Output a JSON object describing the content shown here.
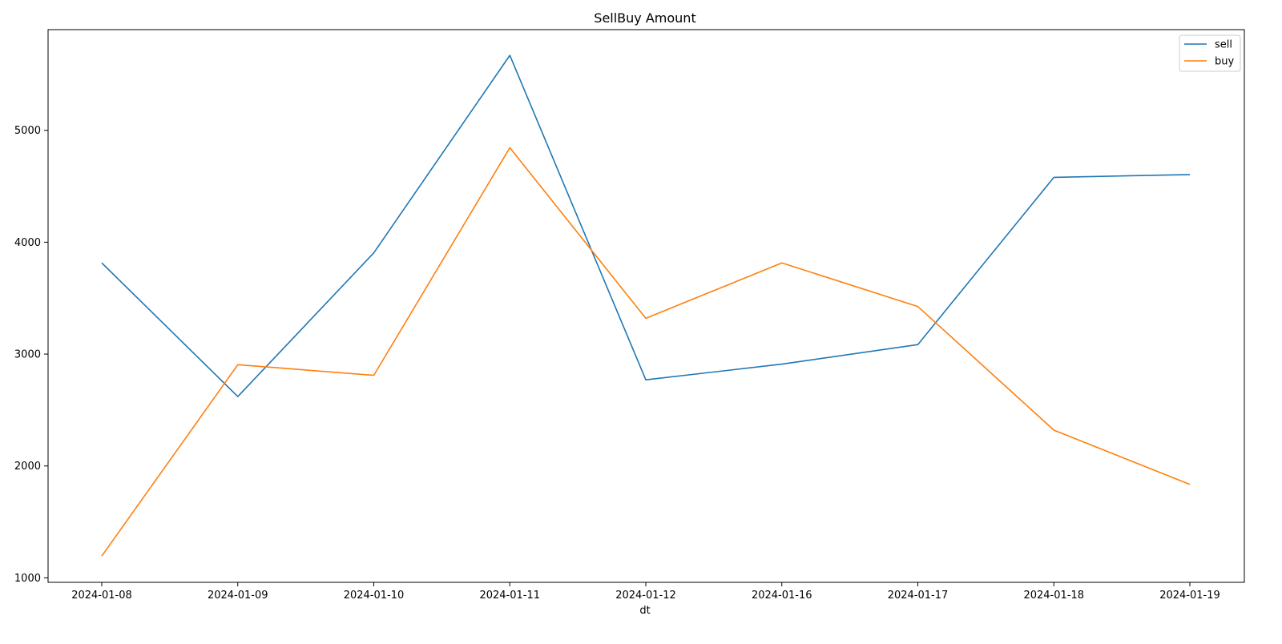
{
  "chart_data": {
    "type": "line",
    "title": "SellBuy Amount",
    "xlabel": "dt",
    "ylabel": "",
    "categories": [
      "2024-01-08",
      "2024-01-09",
      "2024-01-10",
      "2024-01-11",
      "2024-01-12",
      "2024-01-16",
      "2024-01-17",
      "2024-01-18",
      "2024-01-19"
    ],
    "ylim": [
      960,
      5900
    ],
    "yticks": [
      1000,
      2000,
      3000,
      4000,
      5000
    ],
    "grid": false,
    "legend_position": "top-right",
    "series": [
      {
        "name": "sell",
        "color": "#1f77b4",
        "values": [
          3815,
          2620,
          3905,
          5670,
          2770,
          2910,
          3085,
          4580,
          4605
        ]
      },
      {
        "name": "buy",
        "color": "#ff7f0e",
        "values": [
          1195,
          2905,
          2810,
          4845,
          3320,
          3815,
          3425,
          2320,
          1835
        ]
      }
    ]
  }
}
